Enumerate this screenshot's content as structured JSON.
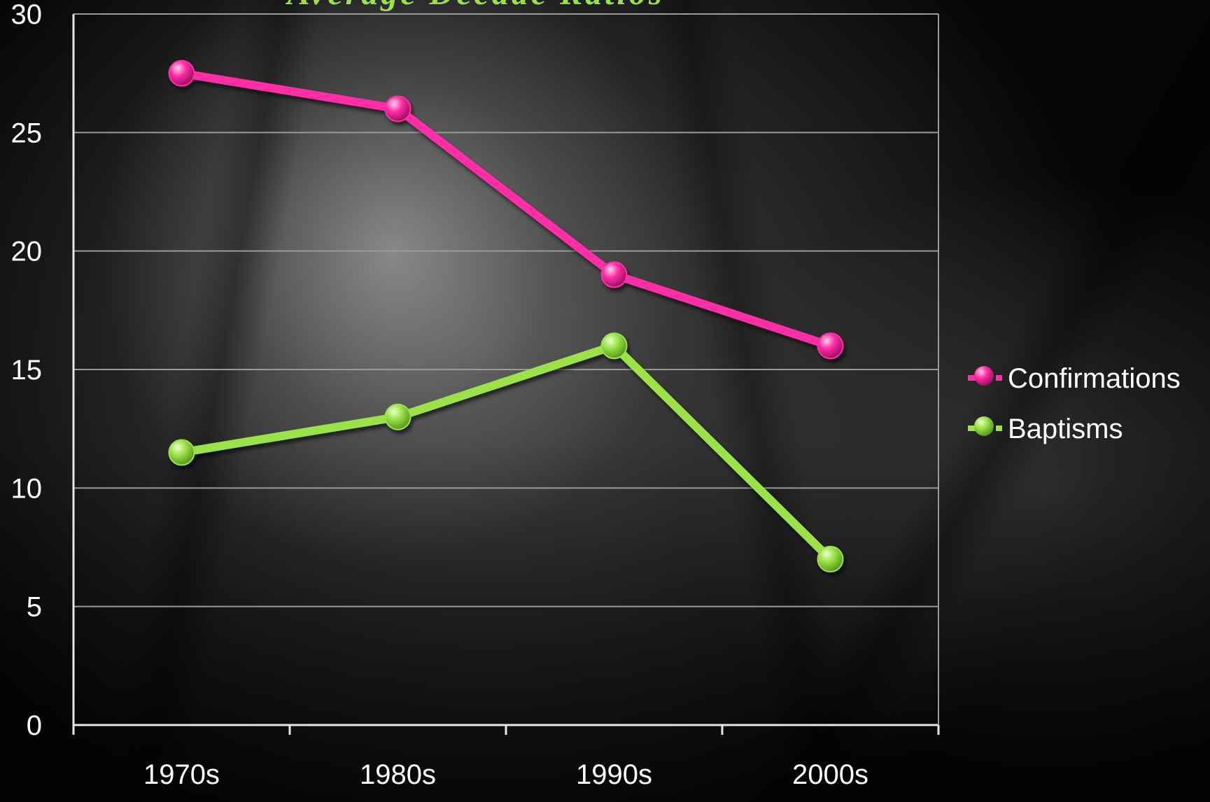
{
  "chart_data": {
    "type": "line",
    "title": "Average Decade Ratios",
    "categories": [
      "1970s",
      "1980s",
      "1990s",
      "2000s"
    ],
    "series": [
      {
        "name": "Confirmations",
        "values": [
          27.5,
          26,
          19,
          16
        ],
        "color": "#ff2fa6"
      },
      {
        "name": "Baptisms",
        "values": [
          11.5,
          13,
          16,
          7
        ],
        "color": "#9be24a"
      }
    ],
    "ylim": [
      0,
      30
    ],
    "yticks": [
      0,
      5,
      10,
      15,
      20,
      25,
      30
    ],
    "grid": true,
    "legend_position": "right"
  },
  "colors": {
    "title": "#9be24a",
    "axis": "#e6e6e6",
    "grid": "#9a9a9a",
    "text": "#ffffff"
  }
}
